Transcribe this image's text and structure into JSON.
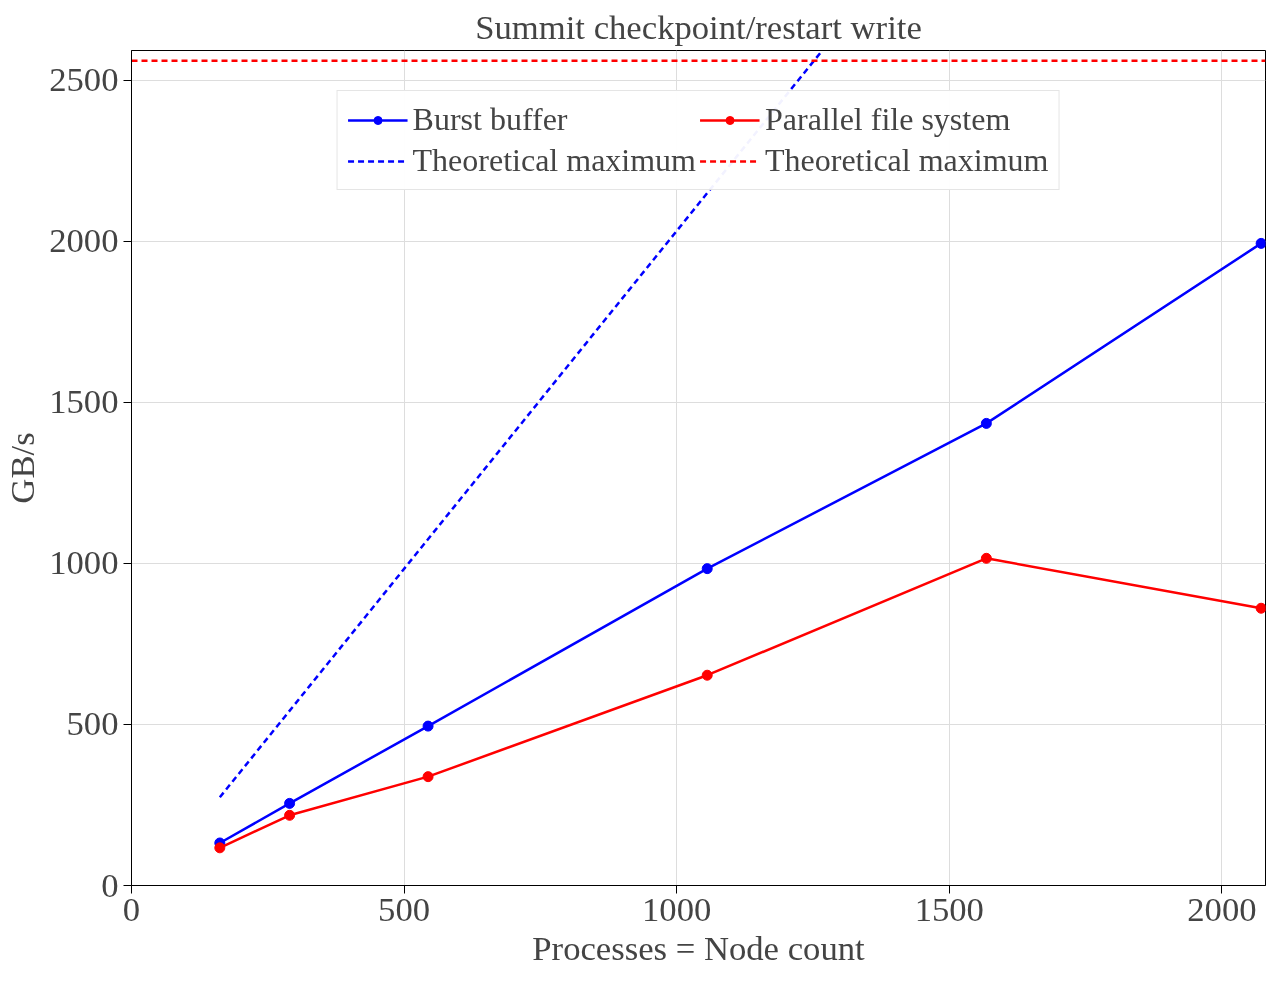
{
  "chart_data": {
    "type": "line",
    "title": "Summit checkpoint/restart write",
    "xlabel": "Processes = Node count",
    "ylabel": "GB/s",
    "xlim": [
      0,
      2080
    ],
    "ylim": [
      0,
      2593
    ],
    "xticks": [
      0,
      500,
      1000,
      1500,
      2000
    ],
    "yticks": [
      0,
      500,
      1000,
      1500,
      2000,
      2500
    ],
    "grid": true,
    "legend": "top",
    "series": [
      {
        "name": "Burst buffer",
        "color": "#0000ff",
        "marker": "circle",
        "line_style": "solid",
        "x": [
          162,
          290,
          544,
          1056,
          1568,
          2072
        ],
        "values": [
          132,
          255,
          495,
          984,
          1435,
          1994
        ]
      },
      {
        "name": "Theoretical maximum",
        "color": "#0000ff",
        "marker": "none",
        "line_style": "dashed",
        "x": [
          162,
          1267
        ],
        "values": [
          274,
          2593
        ]
      },
      {
        "name": "Parallel file system",
        "color": "#ff0000",
        "marker": "circle",
        "line_style": "solid",
        "x": [
          162,
          290,
          544,
          1056,
          1568,
          2072
        ],
        "values": [
          117,
          218,
          338,
          653,
          1016,
          861
        ]
      },
      {
        "name": "Theoretical maximum",
        "color": "#ff0000",
        "marker": "none",
        "line_style": "dashed",
        "x": [
          0,
          2080
        ],
        "values": [
          2561,
          2561
        ]
      }
    ]
  }
}
